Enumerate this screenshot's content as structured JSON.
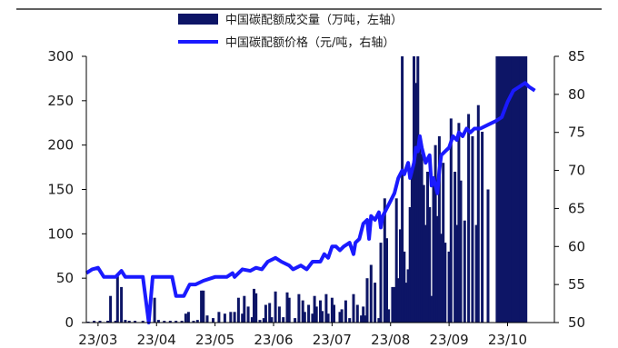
{
  "chart_data": {
    "type": "bar+line",
    "legend": [
      {
        "label": "中国碳配额成交量（万吨，左轴）",
        "kind": "bar",
        "color": "#0d1566"
      },
      {
        "label": "中国碳配额价格（元/吨，右轴）",
        "kind": "line",
        "color": "#1a1aff"
      }
    ],
    "x_ticks": [
      "23/03",
      "23/04",
      "23/05",
      "23/06",
      "23/07",
      "23/08",
      "23/09",
      "23/10"
    ],
    "y_left": {
      "min": 0,
      "max": 300,
      "ticks": [
        "0",
        "50",
        "100",
        "150",
        "200",
        "250",
        "300"
      ]
    },
    "y_right": {
      "min": 50,
      "max": 85,
      "ticks": [
        "50",
        "55",
        "60",
        "65",
        "70",
        "75",
        "80",
        "85"
      ]
    },
    "series": [
      {
        "kind": "bar",
        "axis": "left",
        "color": "#0d1566",
        "points": [
          [
            0.05,
            1
          ],
          [
            0.2,
            2
          ],
          [
            0.35,
            2
          ],
          [
            0.55,
            2
          ],
          [
            0.62,
            30
          ],
          [
            0.75,
            2
          ],
          [
            0.8,
            52
          ],
          [
            0.9,
            40
          ],
          [
            1.0,
            3
          ],
          [
            1.1,
            2
          ],
          [
            1.25,
            2
          ],
          [
            1.45,
            2
          ],
          [
            1.6,
            2
          ],
          [
            1.75,
            28
          ],
          [
            1.85,
            3
          ],
          [
            2.0,
            2
          ],
          [
            2.15,
            2
          ],
          [
            2.3,
            2
          ],
          [
            2.45,
            2
          ],
          [
            2.55,
            10
          ],
          [
            2.62,
            12
          ],
          [
            2.75,
            2
          ],
          [
            2.85,
            3
          ],
          [
            2.95,
            36
          ],
          [
            3.0,
            36
          ],
          [
            3.1,
            8
          ],
          [
            3.25,
            5
          ],
          [
            3.4,
            12
          ],
          [
            3.55,
            10
          ],
          [
            3.7,
            12
          ],
          [
            3.8,
            12
          ],
          [
            3.9,
            28
          ],
          [
            4.0,
            10
          ],
          [
            4.05,
            30
          ],
          [
            4.15,
            18
          ],
          [
            4.25,
            6
          ],
          [
            4.3,
            38
          ],
          [
            4.35,
            33
          ],
          [
            4.45,
            3
          ],
          [
            4.55,
            5
          ],
          [
            4.6,
            20
          ],
          [
            4.7,
            22
          ],
          [
            4.75,
            6
          ],
          [
            4.85,
            35
          ],
          [
            4.95,
            18
          ],
          [
            5.05,
            6
          ],
          [
            5.15,
            34
          ],
          [
            5.2,
            28
          ],
          [
            5.35,
            5
          ],
          [
            5.45,
            32
          ],
          [
            5.55,
            25
          ],
          [
            5.6,
            12
          ],
          [
            5.7,
            20
          ],
          [
            5.8,
            10
          ],
          [
            5.85,
            30
          ],
          [
            5.9,
            18
          ],
          [
            6.0,
            25
          ],
          [
            6.05,
            13
          ],
          [
            6.15,
            32
          ],
          [
            6.2,
            10
          ],
          [
            6.3,
            28
          ],
          [
            6.35,
            20
          ],
          [
            6.5,
            12
          ],
          [
            6.55,
            15
          ],
          [
            6.65,
            25
          ],
          [
            6.75,
            5
          ],
          [
            6.85,
            32
          ],
          [
            6.95,
            20
          ],
          [
            7.05,
            8
          ],
          [
            7.1,
            18
          ],
          [
            7.15,
            8
          ],
          [
            7.2,
            50
          ],
          [
            7.3,
            65
          ],
          [
            7.4,
            45
          ],
          [
            7.5,
            5
          ],
          [
            7.55,
            90
          ],
          [
            7.65,
            140
          ],
          [
            7.7,
            95
          ],
          [
            7.75,
            15
          ],
          [
            7.85,
            40
          ],
          [
            7.9,
            40
          ],
          [
            7.95,
            140
          ],
          [
            8.0,
            50
          ],
          [
            8.05,
            105
          ],
          [
            8.1,
            300
          ],
          [
            8.15,
            80
          ],
          [
            8.2,
            45
          ],
          [
            8.25,
            60
          ],
          [
            8.3,
            130
          ],
          [
            8.35,
            170
          ],
          [
            8.4,
            300
          ],
          [
            8.45,
            270
          ],
          [
            8.5,
            300
          ],
          [
            8.55,
            200
          ],
          [
            8.6,
            190
          ],
          [
            8.65,
            155
          ],
          [
            8.7,
            110
          ],
          [
            8.75,
            170
          ],
          [
            8.8,
            130
          ],
          [
            8.85,
            30
          ],
          [
            8.9,
            160
          ],
          [
            8.95,
            200
          ],
          [
            9.0,
            120
          ],
          [
            9.05,
            210
          ],
          [
            9.1,
            100
          ],
          [
            9.15,
            180
          ],
          [
            9.2,
            90
          ],
          [
            9.3,
            80
          ],
          [
            9.35,
            230
          ],
          [
            9.45,
            170
          ],
          [
            9.5,
            110
          ],
          [
            9.55,
            225
          ],
          [
            9.6,
            160
          ],
          [
            9.7,
            115
          ],
          [
            9.8,
            235
          ],
          [
            9.9,
            210
          ],
          [
            10.0,
            110
          ],
          [
            10.05,
            245
          ],
          [
            10.15,
            215
          ],
          [
            10.3,
            150
          ],
          [
            10.6,
            300
          ],
          [
            10.8,
            300
          ],
          [
            11.0,
            300
          ],
          [
            11.2,
            300
          ]
        ]
      },
      {
        "kind": "line",
        "axis": "right",
        "color": "#1a1aff",
        "points": [
          [
            0.0,
            56.5
          ],
          [
            0.15,
            57
          ],
          [
            0.3,
            57.2
          ],
          [
            0.45,
            56
          ],
          [
            0.6,
            56
          ],
          [
            0.75,
            56
          ],
          [
            0.9,
            56.8
          ],
          [
            1.0,
            56
          ],
          [
            1.15,
            56
          ],
          [
            1.3,
            56
          ],
          [
            1.45,
            56
          ],
          [
            1.6,
            50
          ],
          [
            1.7,
            56
          ],
          [
            2.2,
            56
          ],
          [
            2.3,
            53.5
          ],
          [
            2.5,
            53.5
          ],
          [
            2.65,
            55
          ],
          [
            2.8,
            55
          ],
          [
            3.0,
            55.5
          ],
          [
            3.3,
            56
          ],
          [
            3.6,
            56
          ],
          [
            3.75,
            56.5
          ],
          [
            3.8,
            56
          ],
          [
            4.0,
            57
          ],
          [
            4.2,
            56.8
          ],
          [
            4.35,
            57.2
          ],
          [
            4.5,
            57
          ],
          [
            4.65,
            58
          ],
          [
            4.85,
            58.5
          ],
          [
            5.0,
            58
          ],
          [
            5.2,
            57.5
          ],
          [
            5.3,
            57
          ],
          [
            5.5,
            57.5
          ],
          [
            5.65,
            57
          ],
          [
            5.8,
            58
          ],
          [
            6.0,
            58
          ],
          [
            6.1,
            59
          ],
          [
            6.2,
            58.5
          ],
          [
            6.3,
            60
          ],
          [
            6.4,
            60
          ],
          [
            6.5,
            59.5
          ],
          [
            6.6,
            60
          ],
          [
            6.75,
            60.5
          ],
          [
            6.85,
            59
          ],
          [
            6.9,
            60.5
          ],
          [
            7.0,
            61
          ],
          [
            7.1,
            63
          ],
          [
            7.2,
            63.5
          ],
          [
            7.25,
            61
          ],
          [
            7.3,
            64
          ],
          [
            7.4,
            63.5
          ],
          [
            7.5,
            64.5
          ],
          [
            7.55,
            62.5
          ],
          [
            7.6,
            64
          ],
          [
            7.7,
            65
          ],
          [
            7.8,
            66
          ],
          [
            7.9,
            67
          ],
          [
            8.0,
            69
          ],
          [
            8.1,
            70
          ],
          [
            8.15,
            69.5
          ],
          [
            8.25,
            71
          ],
          [
            8.3,
            69
          ],
          [
            8.4,
            71
          ],
          [
            8.45,
            73
          ],
          [
            8.5,
            72.5
          ],
          [
            8.55,
            74.5
          ],
          [
            8.6,
            73
          ],
          [
            8.7,
            71
          ],
          [
            8.8,
            72
          ],
          [
            8.85,
            68
          ],
          [
            8.9,
            69
          ],
          [
            9.0,
            67
          ],
          [
            9.05,
            70
          ],
          [
            9.1,
            72
          ],
          [
            9.2,
            72.5
          ],
          [
            9.3,
            73
          ],
          [
            9.4,
            74.5
          ],
          [
            9.5,
            74
          ],
          [
            9.55,
            75
          ],
          [
            9.65,
            74.5
          ],
          [
            9.75,
            75.5
          ],
          [
            9.85,
            75
          ],
          [
            9.95,
            75.5
          ],
          [
            10.1,
            75.5
          ],
          [
            10.3,
            76
          ],
          [
            10.5,
            76.5
          ],
          [
            10.65,
            77
          ],
          [
            10.8,
            79
          ],
          [
            10.95,
            80.5
          ],
          [
            11.1,
            81
          ],
          [
            11.25,
            81.5
          ],
          [
            11.35,
            81
          ],
          [
            11.5,
            80.5
          ]
        ]
      }
    ]
  }
}
